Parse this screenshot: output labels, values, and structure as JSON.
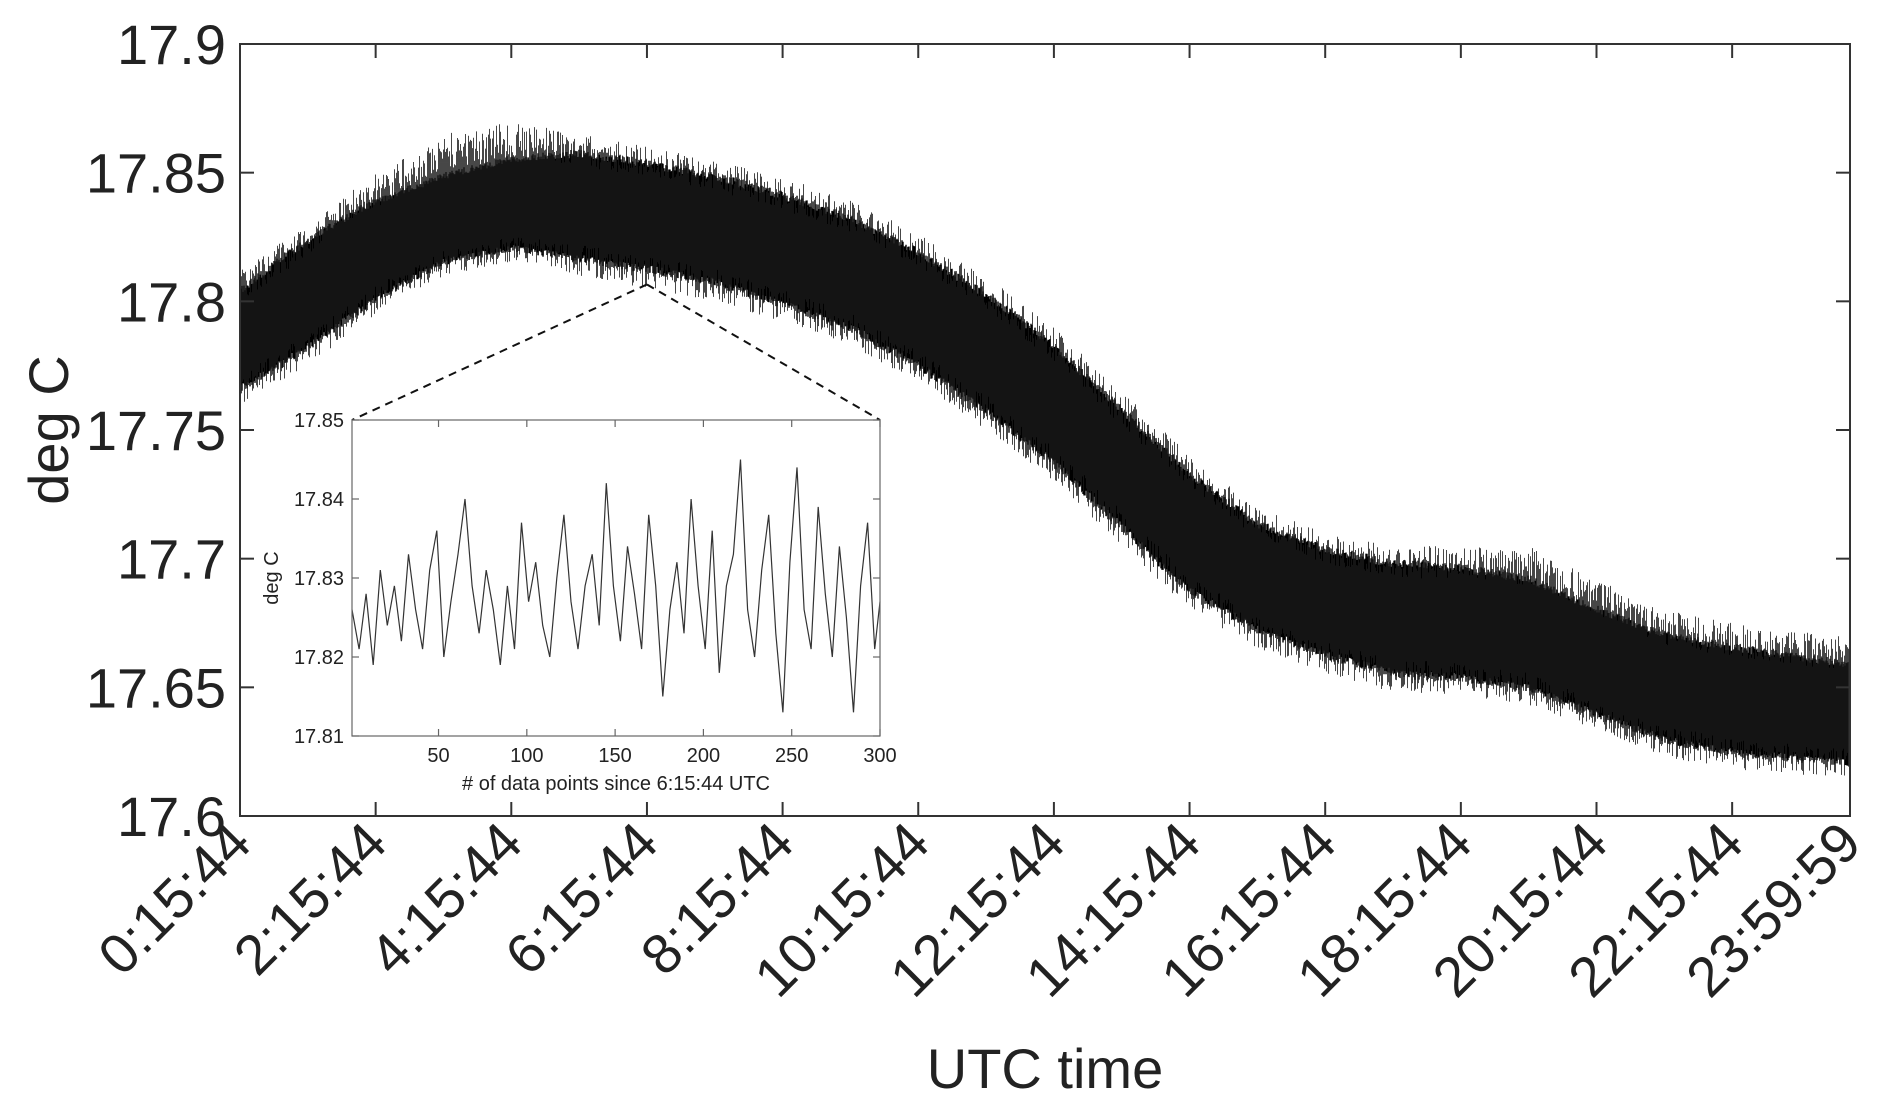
{
  "chart_data": [
    {
      "type": "line",
      "xlabel": "UTC time",
      "ylabel": "deg C",
      "ylim": [
        17.6,
        17.9
      ],
      "yticks": [
        "17.6",
        "17.65",
        "17.7",
        "17.75",
        "17.8",
        "17.85",
        "17.9"
      ],
      "x_tick_labels": [
        "0:15:44",
        "2:15:44",
        "4:15:44",
        "6:15:44",
        "8:15:44",
        "10:15:44",
        "12:15:44",
        "14:15:44",
        "16:15:44",
        "18:15:44",
        "20:15:44",
        "22:15:44",
        "23:59:59"
      ],
      "grid": false,
      "band_center": {
        "x": [
          "0:15:44",
          "1:15:44",
          "2:15:44",
          "3:15:44",
          "4:15:44",
          "5:15:44",
          "6:15:44",
          "7:15:44",
          "8:15:44",
          "9:15:44",
          "10:15:44",
          "11:15:44",
          "12:15:44",
          "13:15:44",
          "14:15:44",
          "15:15:44",
          "16:15:44",
          "17:15:44",
          "18:15:44",
          "19:15:44",
          "20:15:44",
          "21:15:44",
          "22:15:44",
          "23:15:44",
          "23:59:59"
        ],
        "y": [
          17.785,
          17.803,
          17.82,
          17.832,
          17.838,
          17.837,
          17.833,
          17.828,
          17.82,
          17.811,
          17.797,
          17.78,
          17.76,
          17.735,
          17.71,
          17.693,
          17.683,
          17.677,
          17.675,
          17.671,
          17.66,
          17.65,
          17.645,
          17.642,
          17.64
        ]
      },
      "band_envelope": {
        "lower": [
          17.76,
          17.775,
          17.795,
          17.81,
          17.815,
          17.81,
          17.805,
          17.8,
          17.792,
          17.783,
          17.768,
          17.75,
          17.73,
          17.705,
          17.68,
          17.665,
          17.655,
          17.648,
          17.647,
          17.643,
          17.633,
          17.623,
          17.618,
          17.616,
          17.615
        ],
        "upper": [
          17.812,
          17.83,
          17.85,
          17.865,
          17.87,
          17.865,
          17.86,
          17.855,
          17.848,
          17.84,
          17.826,
          17.81,
          17.79,
          17.765,
          17.74,
          17.72,
          17.71,
          17.705,
          17.705,
          17.705,
          17.692,
          17.68,
          17.675,
          17.672,
          17.67
        ]
      }
    },
    {
      "type": "line",
      "xlabel": "# of data points since 6:15:44 UTC",
      "ylabel": "deg C",
      "xlim": [
        1,
        300
      ],
      "ylim": [
        17.81,
        17.85
      ],
      "xticks": [
        "50",
        "100",
        "150",
        "200",
        "250",
        "300"
      ],
      "yticks": [
        "17.81",
        "17.82",
        "17.83",
        "17.84",
        "17.85"
      ],
      "grid": false,
      "x": [
        1,
        5,
        9,
        13,
        17,
        21,
        25,
        29,
        33,
        37,
        41,
        45,
        49,
        53,
        57,
        61,
        65,
        69,
        73,
        77,
        81,
        85,
        89,
        93,
        97,
        101,
        105,
        109,
        113,
        117,
        121,
        125,
        129,
        133,
        137,
        141,
        145,
        149,
        153,
        157,
        161,
        165,
        169,
        173,
        177,
        181,
        185,
        189,
        193,
        197,
        201,
        205,
        209,
        213,
        217,
        221,
        225,
        229,
        233,
        237,
        241,
        245,
        249,
        253,
        257,
        261,
        265,
        269,
        273,
        277,
        281,
        285,
        289,
        293,
        297,
        300
      ],
      "y": [
        17.826,
        17.821,
        17.828,
        17.819,
        17.831,
        17.824,
        17.829,
        17.822,
        17.833,
        17.826,
        17.821,
        17.831,
        17.836,
        17.82,
        17.827,
        17.833,
        17.84,
        17.829,
        17.823,
        17.831,
        17.826,
        17.819,
        17.829,
        17.821,
        17.837,
        17.827,
        17.832,
        17.824,
        17.82,
        17.83,
        17.838,
        17.827,
        17.821,
        17.829,
        17.833,
        17.824,
        17.842,
        17.829,
        17.822,
        17.834,
        17.828,
        17.821,
        17.838,
        17.829,
        17.815,
        17.826,
        17.832,
        17.823,
        17.84,
        17.829,
        17.821,
        17.836,
        17.818,
        17.829,
        17.833,
        17.845,
        17.826,
        17.82,
        17.831,
        17.838,
        17.823,
        17.813,
        17.832,
        17.844,
        17.826,
        17.821,
        17.839,
        17.828,
        17.82,
        17.834,
        17.825,
        17.813,
        17.829,
        17.837,
        17.821,
        17.827
      ]
    }
  ]
}
